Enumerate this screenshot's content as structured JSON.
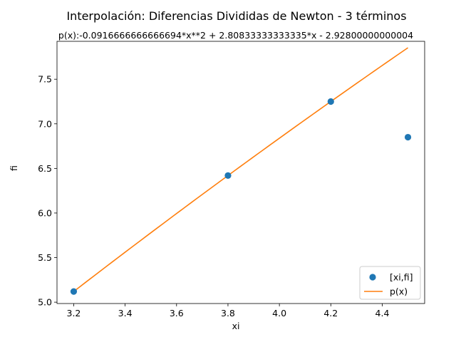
{
  "chart_data": {
    "type": "scatter",
    "title": "Interpolación: Diferencias Divididas de Newton - 3 términos",
    "annotation": "p(x):-0.0916666666666694*x**2 + 2.80833333333335*x - 2.92800000000004",
    "xlabel": "xi",
    "ylabel": "fi",
    "xlim": [
      3.135,
      4.565
    ],
    "ylim": [
      4.985,
      7.925
    ],
    "xticks": [
      3.2,
      3.4,
      3.6,
      3.8,
      4.0,
      4.2,
      4.4
    ],
    "xtick_labels": [
      "3.2",
      "3.4",
      "3.6",
      "3.8",
      "4.0",
      "4.2",
      "4.4"
    ],
    "yticks": [
      5.0,
      5.5,
      6.0,
      6.5,
      7.0,
      7.5
    ],
    "ytick_labels": [
      "5.0",
      "5.5",
      "6.0",
      "6.5",
      "7.0",
      "7.5"
    ],
    "grid": false,
    "legend_position": "lower-right",
    "series": [
      {
        "name": "[xi,fi]",
        "kind": "scatter",
        "color": "#1f77b4",
        "x": [
          3.2,
          3.8,
          4.2,
          4.5
        ],
        "y": [
          5.12,
          6.42,
          7.25,
          6.85
        ]
      },
      {
        "name": "p(x)",
        "kind": "line",
        "color": "#ff7f0e",
        "polynomial": [
          -0.0916666666666694,
          2.80833333333335,
          -2.92800000000004
        ],
        "x_range": [
          3.2,
          4.5
        ]
      }
    ]
  }
}
